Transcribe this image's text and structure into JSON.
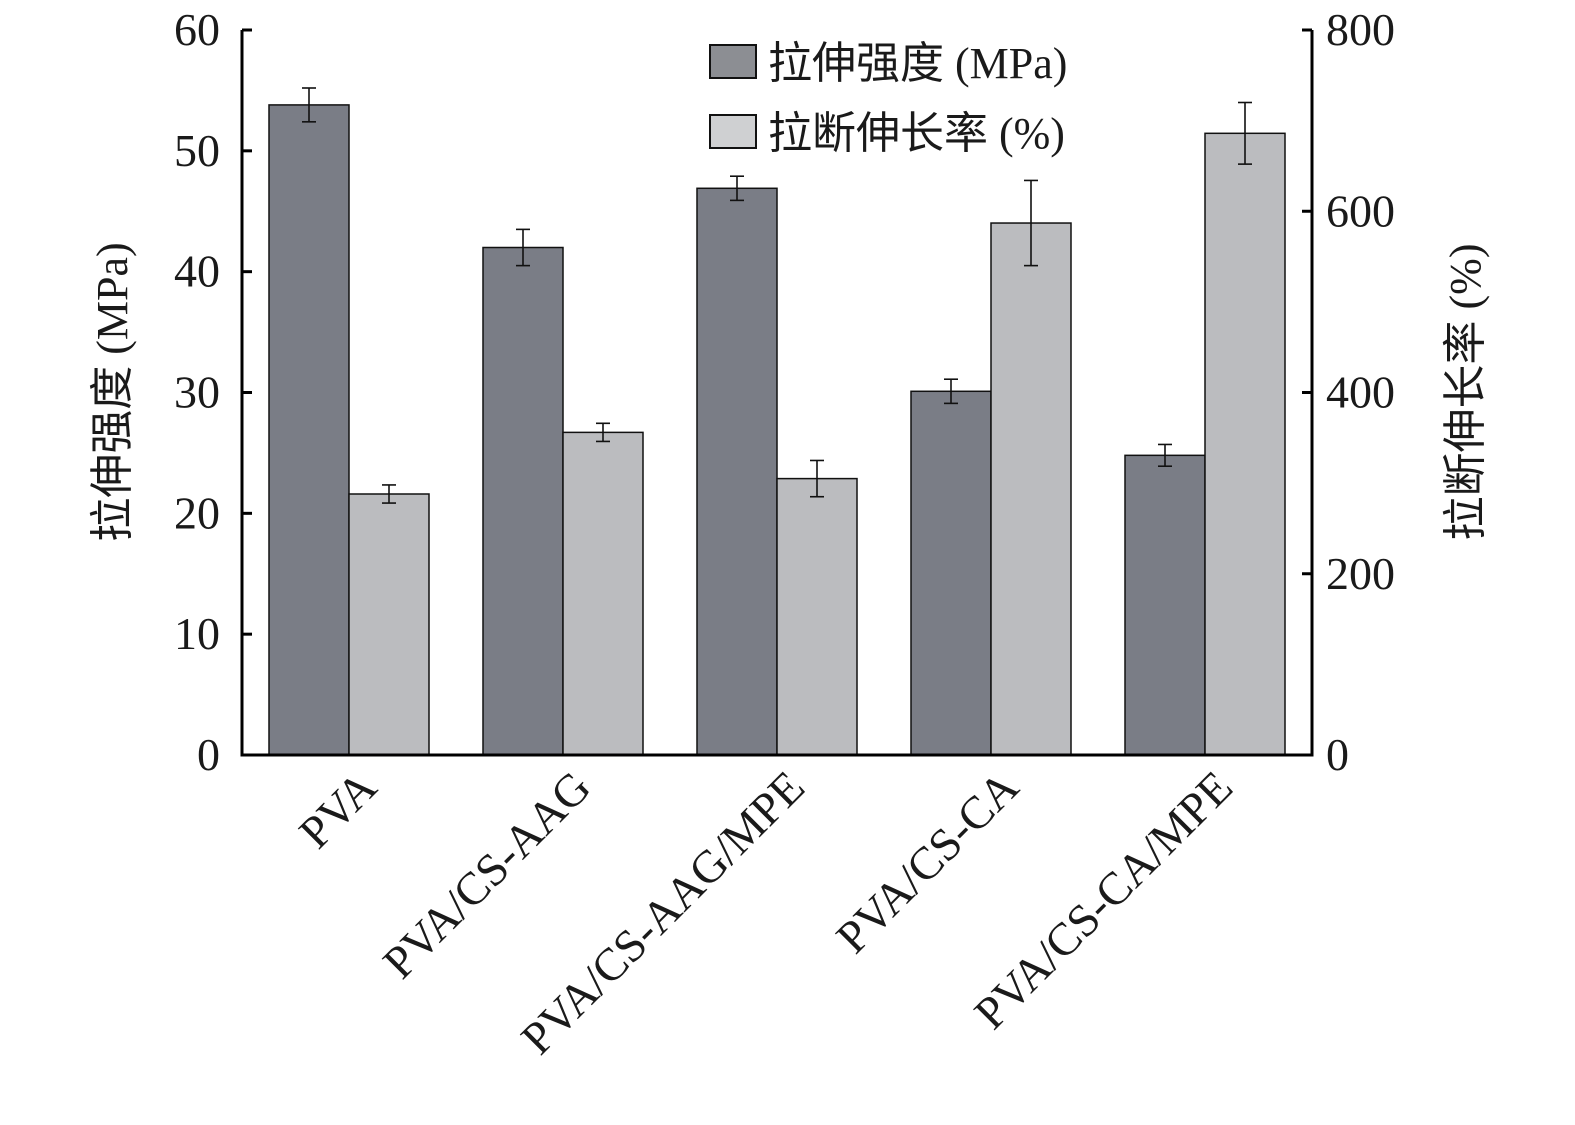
{
  "chart_data": {
    "type": "bar",
    "categories": [
      "PVA",
      "PVA/CS-AAG",
      "PVA/CS-AAG/MPE",
      "PVA/CS-CA",
      "PVA/CS-CA/MPE"
    ],
    "series": [
      {
        "name": "拉伸强度 (MPa)",
        "axis": "left",
        "color": "#7a7d86",
        "values": [
          53.8,
          42.0,
          46.9,
          30.1,
          24.8
        ],
        "errors": [
          1.4,
          1.5,
          1.0,
          1.0,
          0.9
        ]
      },
      {
        "name": "拉断伸长率 (%)",
        "axis": "right",
        "color": "#bbbcbf",
        "values": [
          288,
          356,
          305,
          587,
          686
        ],
        "errors": [
          10,
          10,
          20,
          47,
          34
        ]
      }
    ],
    "y_left": {
      "label": "拉伸强度 (MPa)",
      "ylim": [
        0,
        60
      ],
      "ticks": [
        "0",
        "10",
        "20",
        "30",
        "40",
        "50",
        "60"
      ]
    },
    "y_right": {
      "label": "拉断伸长率 (%)",
      "ylim": [
        0,
        800
      ],
      "ticks": [
        "0",
        "200",
        "400",
        "600",
        "800"
      ]
    },
    "grid": false,
    "legend_position": "top-right"
  }
}
